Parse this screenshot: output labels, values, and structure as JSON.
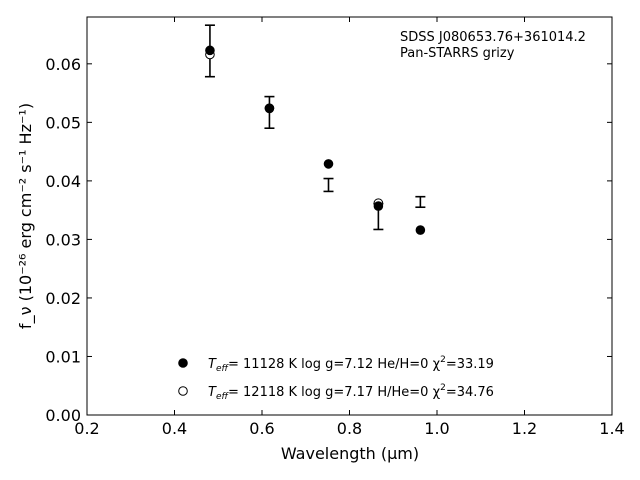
{
  "chart_data": {
    "type": "scatter",
    "title": "",
    "xlabel": "Wavelength (μm)",
    "ylabel": "f_ν (10⁻²⁶ erg cm⁻² s⁻¹ Hz⁻¹)",
    "xlim": [
      0.2,
      1.4
    ],
    "ylim": [
      0.0,
      0.068
    ],
    "x_ticks": [
      0.2,
      0.4,
      0.6,
      0.8,
      1.0,
      1.2,
      1.4
    ],
    "x_tick_labels": [
      "0.2",
      "0.4",
      "0.6",
      "0.8",
      "1.0",
      "1.2",
      "1.4"
    ],
    "y_ticks": [
      0.0,
      0.01,
      0.02,
      0.03,
      0.04,
      0.05,
      0.06
    ],
    "y_tick_labels": [
      "0.00",
      "0.01",
      "0.02",
      "0.03",
      "0.04",
      "0.05",
      "0.06"
    ],
    "grid": false,
    "legend_position": "lower-center",
    "annotation_lines": [
      "SDSS J080653.76+361014.2",
      "Pan-STARRS grizy"
    ],
    "observed": {
      "x": [
        0.481,
        0.617,
        0.752,
        0.866,
        0.962
      ],
      "y": [
        0.0622,
        0.0517,
        0.0393,
        0.0339,
        0.0364
      ],
      "yerr": [
        0.0044,
        0.0027,
        0.0011,
        0.0022,
        0.0009
      ]
    },
    "series": [
      {
        "name": "T_eff= 11128 K  log g=7.12  He/H=0  χ²=33.19",
        "marker": "filled-circle",
        "x": [
          0.481,
          0.617,
          0.752,
          0.866,
          0.962
        ],
        "y": [
          0.0623,
          0.0524,
          0.0429,
          0.0357,
          0.0316
        ]
      },
      {
        "name": "T_eff= 12118 K  log g=7.17  H/He=0  χ²=34.76",
        "marker": "open-circle",
        "x": [
          0.481,
          0.617,
          0.866
        ],
        "y": [
          0.0616,
          0.0524,
          0.0362
        ]
      }
    ],
    "legend": [
      {
        "marker": "filled-circle",
        "label_prefix": "T",
        "label_sub": "eff",
        "label_rest": "= 11128 K  log g=7.12  He/H=0  χ",
        "label_sup": "2",
        "label_end": "=33.19"
      },
      {
        "marker": "open-circle",
        "label_prefix": "T",
        "label_sub": "eff",
        "label_rest": "= 12118 K  log g=7.17  H/He=0  χ",
        "label_sup": "2",
        "label_end": "=34.76"
      }
    ]
  }
}
